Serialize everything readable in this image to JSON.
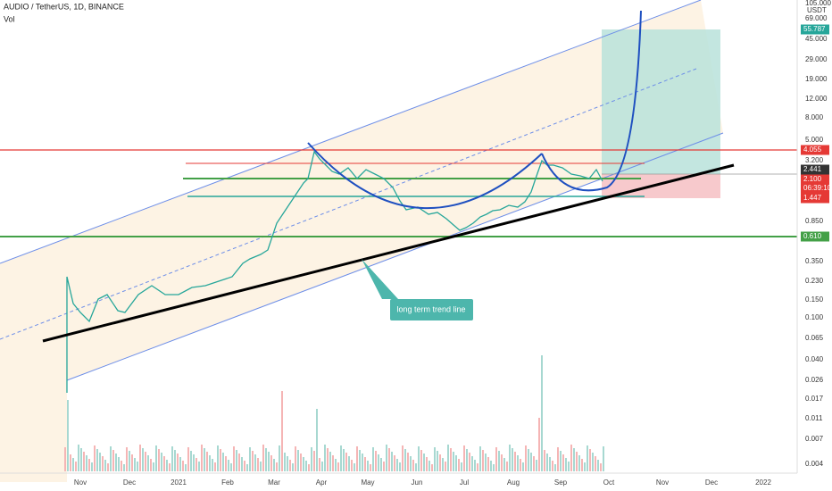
{
  "header": {
    "symbol": "AUDIO / TetherUS, 1D, BINANCE",
    "volume_label": "Vol"
  },
  "price_axis": {
    "currency": "USDT",
    "labels": [
      "105.000",
      "69.000",
      "45.000",
      "29.000",
      "19.000",
      "12.000",
      "8.000",
      "5.000",
      "3.200",
      "0.850",
      "0.350",
      "0.230",
      "0.150",
      "0.100",
      "0.065",
      "0.040",
      "0.026",
      "0.017",
      "0.011",
      "0.007",
      "0.004"
    ],
    "tags": [
      "55.787",
      "4.055",
      "2.441",
      "2.100",
      "06:39:10",
      "1.447",
      "0.610"
    ]
  },
  "time_axis": [
    "Nov",
    "Dec",
    "2021",
    "Feb",
    "Mar",
    "Apr",
    "May",
    "Jun",
    "Jul",
    "Aug",
    "Sep",
    "Oct",
    "Nov",
    "Dec",
    "2022"
  ],
  "annotation": "long term trend line"
}
